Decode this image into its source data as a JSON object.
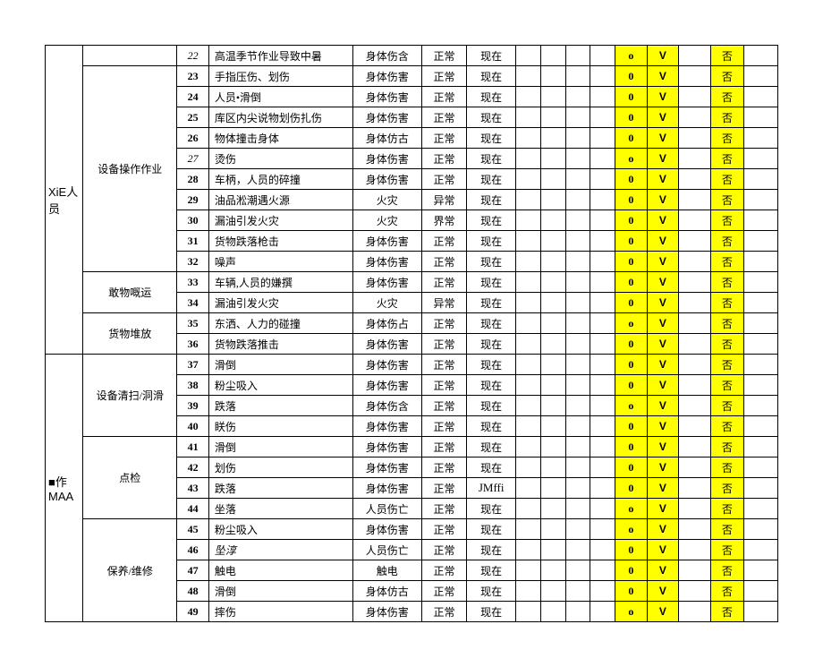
{
  "highlight_bg": "#ffff00",
  "leftGroups": {
    "xie": "XiE人员",
    "maa": "■作\nMAA"
  },
  "subGroups": {
    "g22": "",
    "g23": "设备操作作业",
    "g33": "敢物嘅运",
    "g35": "货物堆放",
    "g37": "设备清扫/洞滑",
    "g41": "点检",
    "g45": "保养/维修"
  },
  "rows": [
    {
      "n": "22",
      "it": true,
      "desc": "高温季节作业导致中暑",
      "c3": "身体伤含",
      "c4": "正常",
      "c5": "现在",
      "o": "o",
      "v": "V",
      "f": "否"
    },
    {
      "n": "23",
      "desc": "手指压伤、划伤",
      "c3": "身体伤害",
      "c4": "正常",
      "c5": "现在",
      "o": "0",
      "v": "V",
      "f": "否"
    },
    {
      "n": "24",
      "desc": "人员•滑倒",
      "c3": "身体伤害",
      "c4": "正常",
      "c5": "现在",
      "o": "0",
      "v": "V",
      "f": "否"
    },
    {
      "n": "25",
      "desc": "库区内尖说物划伤扎伤",
      "c3": "身体伤害",
      "c4": "正常",
      "c5": "现在",
      "o": "0",
      "v": "V",
      "f": "否"
    },
    {
      "n": "26",
      "desc": "物体撞击身体",
      "c3": "身体仿古",
      "c4": "正常",
      "c5": "现在",
      "o": "0",
      "v": "V",
      "f": "否"
    },
    {
      "n": "27",
      "it": true,
      "desc": "烫伤",
      "c3": "身体伤害",
      "c4": "正常",
      "c5": "现在",
      "o": "o",
      "v": "V",
      "f": "否"
    },
    {
      "n": "28",
      "desc": "车柄，人员的碎撞",
      "c3": "身体伤害",
      "c4": "正常",
      "c5": "现在",
      "o": "0",
      "v": "V",
      "f": "否"
    },
    {
      "n": "29",
      "desc": "油品淞潮遇火源",
      "c3": "火灾",
      "c4": "异常",
      "c5": "现在",
      "o": "0",
      "v": "V",
      "f": "否"
    },
    {
      "n": "30",
      "desc": "漏油引发火灾",
      "c3": "火灾",
      "c4": "界常",
      "c5": "现在",
      "o": "0",
      "v": "V",
      "f": "否"
    },
    {
      "n": "31",
      "desc": "货物跌落枪击",
      "c3": "身体伤害",
      "c4": "正常",
      "c5": "现在",
      "o": "0",
      "v": "V",
      "f": "否"
    },
    {
      "n": "32",
      "desc": "噪声",
      "c3": "身体伤害",
      "c4": "正常",
      "c5": "现在",
      "o": "0",
      "v": "V",
      "f": "否"
    },
    {
      "n": "33",
      "desc": "车辆,人员的嫌撰",
      "c3": "身体伤害",
      "c4": "正常",
      "c5": "现在",
      "o": "0",
      "v": "V",
      "f": "否"
    },
    {
      "n": "34",
      "desc": "漏油引发火灾",
      "c3": "火灾",
      "c4": "异常",
      "c5": "现在",
      "o": "0",
      "v": "V",
      "f": "否"
    },
    {
      "n": "35",
      "desc": "东洒、人力的碰撞",
      "c3": "身体伤占",
      "c4": "正常",
      "c5": "现在",
      "o": "o",
      "v": "V",
      "f": "否"
    },
    {
      "n": "36",
      "desc": "货物跌落推击",
      "c3": "身体伤害",
      "c4": "正常",
      "c5": "现在",
      "o": "0",
      "v": "V",
      "f": "否"
    },
    {
      "n": "37",
      "desc": "滑倒",
      "c3": "身体伤害",
      "c4": "正常",
      "c5": "现在",
      "o": "0",
      "v": "V",
      "f": "否"
    },
    {
      "n": "38",
      "desc": "粉尘吸入",
      "c3": "身体伤害",
      "c4": "正常",
      "c5": "现在",
      "o": "0",
      "v": "V",
      "f": "否"
    },
    {
      "n": "39",
      "desc": "跌落",
      "c3": "身体伤含",
      "c4": "正常",
      "c5": "现在",
      "o": "o",
      "v": "V",
      "f": "否"
    },
    {
      "n": "40",
      "desc": "眹伤",
      "c3": "身体伤害",
      "c4": "正常",
      "c5": "现在",
      "o": "0",
      "v": "V",
      "f": "否"
    },
    {
      "n": "41",
      "desc": "滑倒",
      "c3": "身体伤害",
      "c4": "正常",
      "c5": "现在",
      "o": "0",
      "v": "V",
      "f": "否"
    },
    {
      "n": "42",
      "desc": "划伤",
      "c3": "身体伤害",
      "c4": "正常",
      "c5": "现在",
      "o": "0",
      "v": "V",
      "f": "否"
    },
    {
      "n": "43",
      "desc": "跌落",
      "c3": "身体伤害",
      "c4": "正常",
      "c5": "JMffi",
      "o": "0",
      "v": "V",
      "f": "否"
    },
    {
      "n": "44",
      "desc": "坐落",
      "c3": "人员伤亡",
      "c4": "正常",
      "c5": "现在",
      "o": "o",
      "v": "V",
      "f": "否"
    },
    {
      "n": "45",
      "desc": "粉尘吸入",
      "c3": "身体伤害",
      "c4": "正常",
      "c5": "现在",
      "o": "o",
      "v": "V",
      "f": "否"
    },
    {
      "n": "46",
      "desc": "坠淳",
      "it2": true,
      "c3": "人员伤亡",
      "c4": "正常",
      "c5": "现在",
      "o": "0",
      "v": "V",
      "f": "否"
    },
    {
      "n": "47",
      "desc": "触电",
      "c3": "触电",
      "c4": "正常",
      "c5": "现在",
      "o": "0",
      "v": "V",
      "f": "否"
    },
    {
      "n": "48",
      "desc": "滑倒",
      "c3": "身体仿古",
      "c4": "正常",
      "c5": "现在",
      "o": "0",
      "v": "V",
      "f": "否"
    },
    {
      "n": "49",
      "desc": "摔伤",
      "c3": "身体伤害",
      "c4": "正常",
      "c5": "现在",
      "o": "o",
      "v": "V",
      "f": "否"
    }
  ]
}
